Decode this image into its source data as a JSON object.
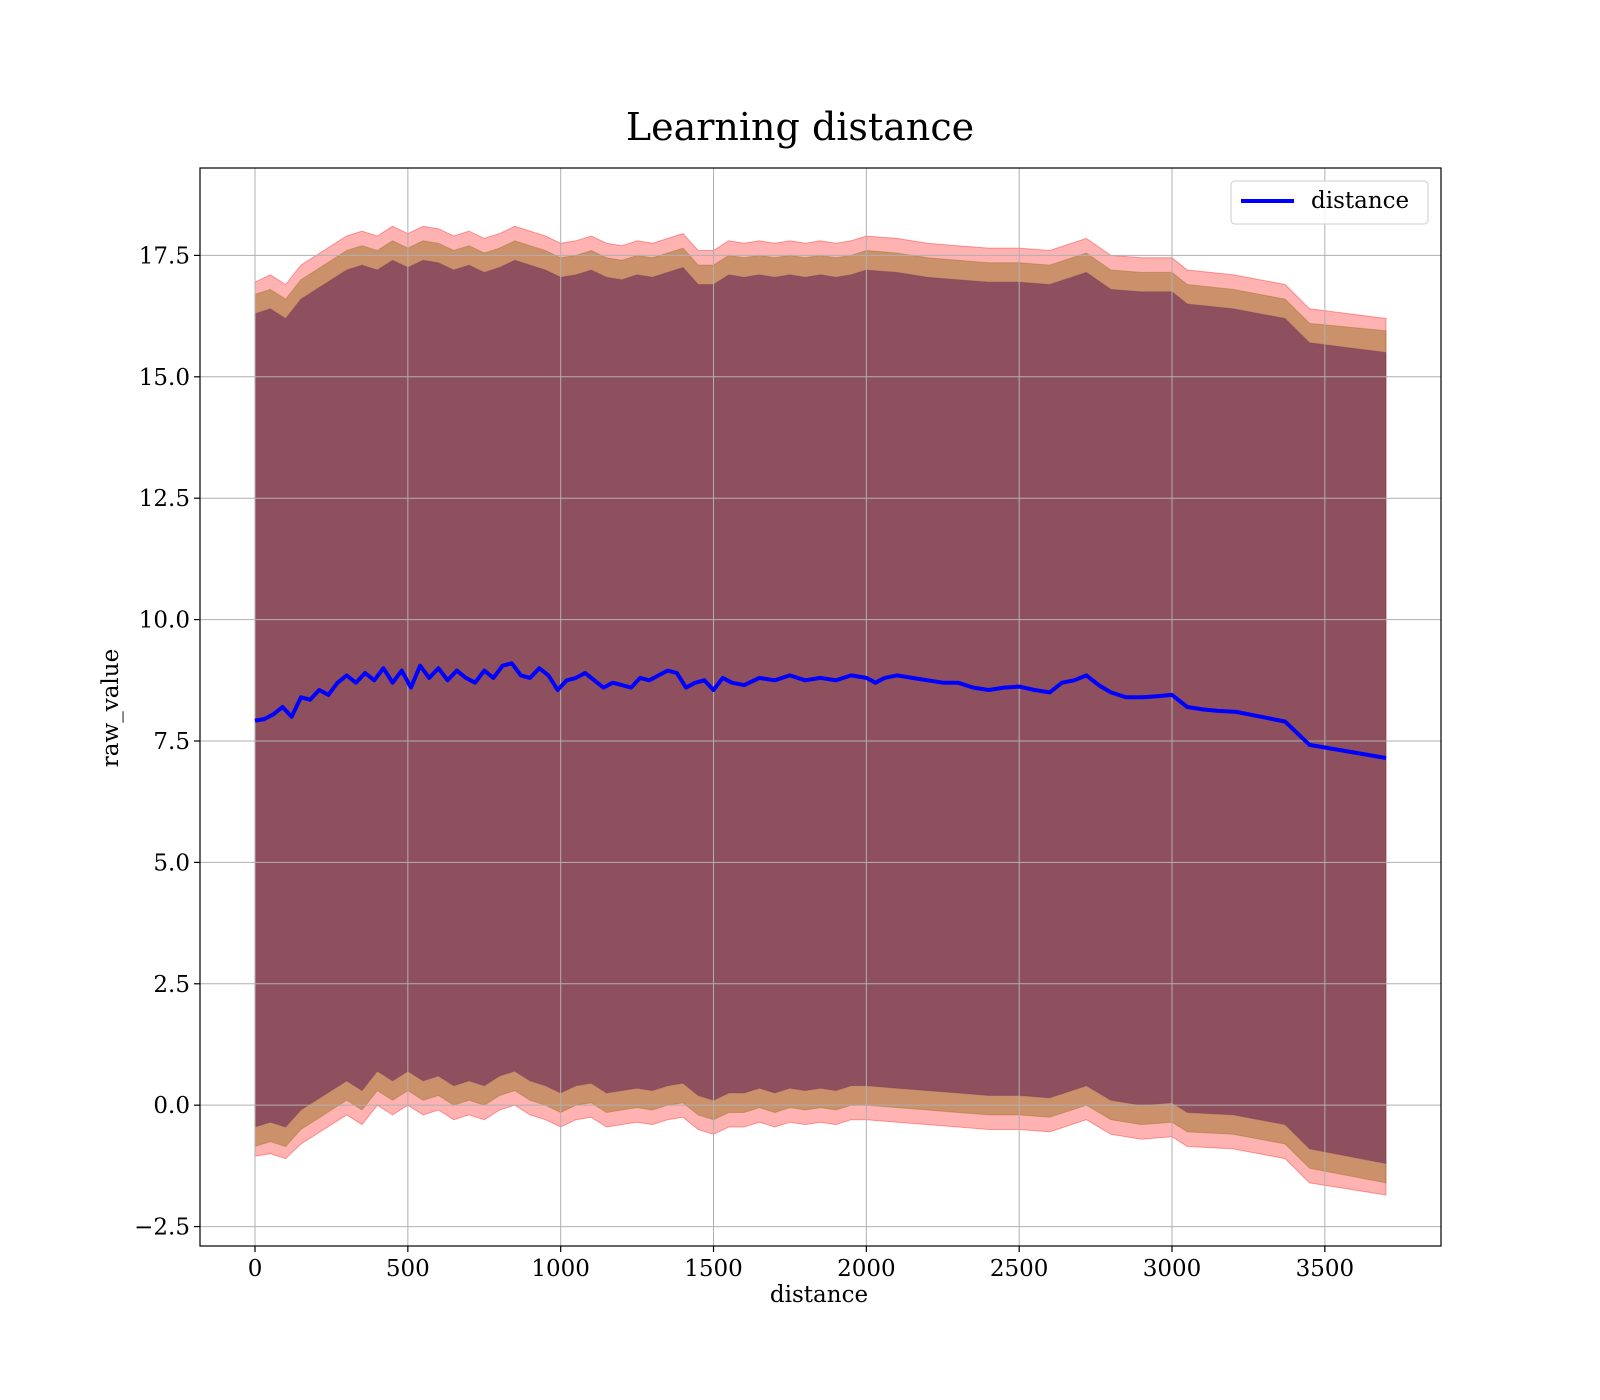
{
  "chart_data": {
    "type": "line",
    "title": "Learning distance",
    "xlabel": "distance",
    "ylabel": "raw_value",
    "xlim": [
      -180,
      3880
    ],
    "ylim": [
      -2.9,
      19.3
    ],
    "xticks": [
      0,
      500,
      1000,
      1500,
      2000,
      2500,
      3000,
      3500
    ],
    "xtick_labels": [
      "0",
      "500",
      "1000",
      "1500",
      "2000",
      "2500",
      "3000",
      "3500"
    ],
    "yticks": [
      -2.5,
      0.0,
      2.5,
      5.0,
      7.5,
      10.0,
      12.5,
      15.0,
      17.5
    ],
    "ytick_labels": [
      "−2.5",
      "0.0",
      "2.5",
      "5.0",
      "7.5",
      "10.0",
      "12.5",
      "15.0",
      "17.5"
    ],
    "grid": true,
    "legend": {
      "position": "top-right",
      "entries": [
        {
          "label": "distance",
          "color": "#0000ff"
        }
      ]
    },
    "series": [
      {
        "name": "distance",
        "color": "#0000ff",
        "x": [
          0,
          30,
          60,
          90,
          120,
          150,
          180,
          210,
          240,
          270,
          300,
          330,
          360,
          390,
          420,
          450,
          480,
          510,
          540,
          570,
          600,
          630,
          660,
          690,
          720,
          750,
          780,
          810,
          840,
          870,
          900,
          930,
          960,
          990,
          1020,
          1050,
          1080,
          1110,
          1140,
          1170,
          1200,
          1230,
          1260,
          1290,
          1320,
          1350,
          1380,
          1410,
          1440,
          1470,
          1500,
          1530,
          1560,
          1600,
          1650,
          1700,
          1750,
          1800,
          1850,
          1900,
          1950,
          2000,
          2030,
          2060,
          2100,
          2150,
          2200,
          2250,
          2300,
          2350,
          2400,
          2450,
          2500,
          2550,
          2600,
          2640,
          2680,
          2720,
          2760,
          2800,
          2850,
          2900,
          2950,
          3000,
          3050,
          3100,
          3150,
          3210,
          3290,
          3370,
          3450,
          3700
        ],
        "y": [
          7.92,
          7.95,
          8.05,
          8.2,
          8.0,
          8.4,
          8.35,
          8.55,
          8.45,
          8.7,
          8.85,
          8.7,
          8.9,
          8.75,
          9.0,
          8.7,
          8.95,
          8.6,
          9.05,
          8.8,
          9.0,
          8.75,
          8.95,
          8.8,
          8.7,
          8.95,
          8.8,
          9.05,
          9.1,
          8.85,
          8.8,
          9.0,
          8.85,
          8.55,
          8.75,
          8.8,
          8.9,
          8.75,
          8.6,
          8.7,
          8.65,
          8.6,
          8.8,
          8.75,
          8.85,
          8.95,
          8.9,
          8.6,
          8.7,
          8.75,
          8.55,
          8.8,
          8.7,
          8.65,
          8.8,
          8.75,
          8.85,
          8.75,
          8.8,
          8.75,
          8.85,
          8.8,
          8.7,
          8.8,
          8.85,
          8.8,
          8.75,
          8.7,
          8.7,
          8.6,
          8.55,
          8.6,
          8.62,
          8.55,
          8.5,
          8.7,
          8.75,
          8.85,
          8.65,
          8.5,
          8.4,
          8.4,
          8.42,
          8.45,
          8.2,
          8.15,
          8.12,
          8.1,
          8.0,
          7.9,
          7.42,
          7.15
        ]
      }
    ],
    "bands": [
      {
        "name": "outer",
        "color": "#ff0000",
        "opacity": 0.3,
        "x": [
          0,
          50,
          100,
          150,
          200,
          250,
          300,
          350,
          400,
          450,
          500,
          550,
          600,
          650,
          700,
          750,
          800,
          850,
          900,
          950,
          1000,
          1050,
          1100,
          1150,
          1200,
          1250,
          1300,
          1350,
          1400,
          1450,
          1500,
          1550,
          1600,
          1650,
          1700,
          1750,
          1800,
          1850,
          1900,
          1950,
          2000,
          2100,
          2200,
          2300,
          2400,
          2500,
          2600,
          2720,
          2800,
          2900,
          3000,
          3050,
          3200,
          3370,
          3450,
          3700
        ],
        "upper": [
          16.95,
          17.1,
          16.9,
          17.3,
          17.5,
          17.7,
          17.9,
          18.0,
          17.9,
          18.1,
          17.95,
          18.1,
          18.05,
          17.9,
          18.0,
          17.85,
          17.95,
          18.1,
          18.0,
          17.9,
          17.75,
          17.8,
          17.9,
          17.75,
          17.7,
          17.8,
          17.75,
          17.85,
          17.95,
          17.6,
          17.6,
          17.8,
          17.75,
          17.8,
          17.75,
          17.8,
          17.75,
          17.8,
          17.75,
          17.8,
          17.9,
          17.85,
          17.75,
          17.7,
          17.65,
          17.65,
          17.6,
          17.85,
          17.5,
          17.45,
          17.45,
          17.2,
          17.1,
          16.9,
          16.4,
          16.2
        ],
        "lower": [
          -1.05,
          -1.0,
          -1.1,
          -0.8,
          -0.6,
          -0.4,
          -0.2,
          -0.4,
          0.0,
          -0.2,
          0.0,
          -0.2,
          -0.1,
          -0.3,
          -0.2,
          -0.3,
          -0.1,
          0.0,
          -0.2,
          -0.3,
          -0.45,
          -0.3,
          -0.25,
          -0.45,
          -0.4,
          -0.35,
          -0.4,
          -0.3,
          -0.25,
          -0.5,
          -0.6,
          -0.45,
          -0.45,
          -0.35,
          -0.45,
          -0.35,
          -0.4,
          -0.35,
          -0.4,
          -0.3,
          -0.3,
          -0.35,
          -0.4,
          -0.45,
          -0.5,
          -0.5,
          -0.55,
          -0.3,
          -0.6,
          -0.7,
          -0.65,
          -0.85,
          -0.9,
          -1.1,
          -1.6,
          -1.85
        ]
      },
      {
        "name": "middle",
        "color": "#8b6914",
        "opacity": 0.45,
        "x": [
          0,
          50,
          100,
          150,
          200,
          250,
          300,
          350,
          400,
          450,
          500,
          550,
          600,
          650,
          700,
          750,
          800,
          850,
          900,
          950,
          1000,
          1050,
          1100,
          1150,
          1200,
          1250,
          1300,
          1350,
          1400,
          1450,
          1500,
          1550,
          1600,
          1650,
          1700,
          1750,
          1800,
          1850,
          1900,
          1950,
          2000,
          2100,
          2200,
          2300,
          2400,
          2500,
          2600,
          2720,
          2800,
          2900,
          3000,
          3050,
          3200,
          3370,
          3450,
          3700
        ],
        "upper": [
          16.7,
          16.8,
          16.6,
          17.0,
          17.2,
          17.4,
          17.6,
          17.7,
          17.6,
          17.8,
          17.65,
          17.8,
          17.75,
          17.6,
          17.7,
          17.55,
          17.65,
          17.8,
          17.7,
          17.6,
          17.45,
          17.5,
          17.6,
          17.45,
          17.4,
          17.5,
          17.45,
          17.55,
          17.65,
          17.3,
          17.3,
          17.5,
          17.45,
          17.5,
          17.45,
          17.5,
          17.45,
          17.5,
          17.45,
          17.5,
          17.6,
          17.55,
          17.45,
          17.4,
          17.35,
          17.35,
          17.3,
          17.55,
          17.2,
          17.15,
          17.15,
          16.9,
          16.8,
          16.6,
          16.1,
          15.95
        ],
        "lower": [
          -0.85,
          -0.75,
          -0.85,
          -0.5,
          -0.3,
          -0.1,
          0.1,
          -0.1,
          0.3,
          0.1,
          0.3,
          0.1,
          0.2,
          0.0,
          0.1,
          0.0,
          0.2,
          0.3,
          0.1,
          0.0,
          -0.15,
          0.0,
          0.05,
          -0.15,
          -0.1,
          -0.05,
          -0.1,
          0.0,
          0.05,
          -0.2,
          -0.3,
          -0.15,
          -0.15,
          -0.05,
          -0.15,
          -0.05,
          -0.1,
          -0.05,
          -0.1,
          0.0,
          0.0,
          -0.05,
          -0.1,
          -0.15,
          -0.2,
          -0.2,
          -0.25,
          0.0,
          -0.3,
          -0.4,
          -0.35,
          -0.55,
          -0.6,
          -0.8,
          -1.3,
          -1.6
        ]
      },
      {
        "name": "inner",
        "color": "#7a3a5a",
        "opacity": 0.75,
        "x": [
          0,
          50,
          100,
          150,
          200,
          250,
          300,
          350,
          400,
          450,
          500,
          550,
          600,
          650,
          700,
          750,
          800,
          850,
          900,
          950,
          1000,
          1050,
          1100,
          1150,
          1200,
          1250,
          1300,
          1350,
          1400,
          1450,
          1500,
          1550,
          1600,
          1650,
          1700,
          1750,
          1800,
          1850,
          1900,
          1950,
          2000,
          2100,
          2200,
          2300,
          2400,
          2500,
          2600,
          2720,
          2800,
          2900,
          3000,
          3050,
          3200,
          3370,
          3450,
          3700
        ],
        "upper": [
          16.3,
          16.4,
          16.2,
          16.6,
          16.8,
          17.0,
          17.2,
          17.3,
          17.2,
          17.4,
          17.25,
          17.4,
          17.35,
          17.2,
          17.3,
          17.15,
          17.25,
          17.4,
          17.3,
          17.2,
          17.05,
          17.1,
          17.2,
          17.05,
          17.0,
          17.1,
          17.05,
          17.15,
          17.25,
          16.9,
          16.9,
          17.1,
          17.05,
          17.1,
          17.05,
          17.1,
          17.05,
          17.1,
          17.05,
          17.1,
          17.2,
          17.15,
          17.05,
          17.0,
          16.95,
          16.95,
          16.9,
          17.15,
          16.8,
          16.75,
          16.75,
          16.5,
          16.4,
          16.2,
          15.7,
          15.5
        ],
        "lower": [
          -0.45,
          -0.35,
          -0.45,
          -0.1,
          0.1,
          0.3,
          0.5,
          0.3,
          0.7,
          0.5,
          0.7,
          0.5,
          0.6,
          0.4,
          0.5,
          0.4,
          0.6,
          0.7,
          0.5,
          0.4,
          0.25,
          0.4,
          0.45,
          0.25,
          0.3,
          0.35,
          0.3,
          0.4,
          0.45,
          0.2,
          0.1,
          0.25,
          0.25,
          0.35,
          0.25,
          0.35,
          0.3,
          0.35,
          0.3,
          0.4,
          0.4,
          0.35,
          0.3,
          0.25,
          0.2,
          0.2,
          0.15,
          0.4,
          0.1,
          0.0,
          0.05,
          -0.15,
          -0.2,
          -0.4,
          -0.9,
          -1.2
        ]
      }
    ]
  }
}
